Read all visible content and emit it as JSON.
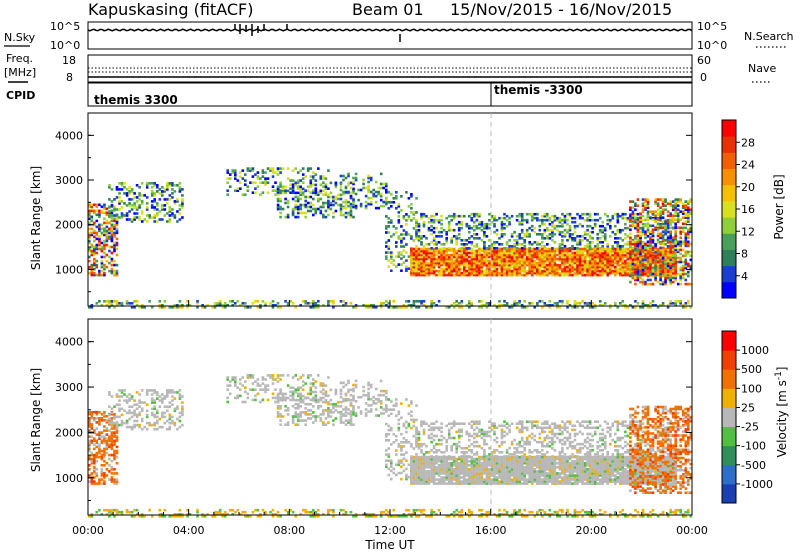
{
  "header": {
    "station": "Kapuskasing (fitACF)",
    "beam": "Beam 01",
    "date_range": "15/Nov/2015 - 16/Nov/2015"
  },
  "strip_panels": {
    "nsky": {
      "left_label": "N.Sky",
      "left_ticks": [
        "10^5",
        "10^0"
      ],
      "right_ticks": [
        "10^5",
        "10^0"
      ],
      "right_label": "N.Search"
    },
    "freq": {
      "left_label_line1": "Freq.",
      "left_label_line2": "[MHz]",
      "left_ticks": [
        "18",
        "8"
      ],
      "right_ticks": [
        "60",
        "0"
      ],
      "right_label": "Nave"
    },
    "cpid": {
      "label": "CPID",
      "segments": [
        "themis 3300",
        "themis -3300"
      ]
    }
  },
  "chart_data": [
    {
      "type": "heatmap",
      "name": "power",
      "ylabel": "Slant Range [km]",
      "ylim": [
        180,
        4500
      ],
      "yticks": [
        "4000",
        "3000",
        "2000",
        "1000"
      ],
      "xlim": [
        "00:00",
        "24:00"
      ],
      "colorbar": {
        "label": "Power [dB]",
        "ticks": [
          "28",
          "24",
          "20",
          "16",
          "12",
          "8",
          "4"
        ],
        "colors": [
          "#0000ff",
          "#1a3fd0",
          "#2f7f5a",
          "#4aa05a",
          "#8fcf3a",
          "#d8e020",
          "#f5c000",
          "#f59000",
          "#f06000",
          "#e83000",
          "#ff0000"
        ]
      },
      "dashed_marker_time": "16:00"
    },
    {
      "type": "heatmap",
      "name": "velocity",
      "ylabel": "Slant Range [km]",
      "ylim": [
        180,
        4500
      ],
      "yticks": [
        "4000",
        "3000",
        "2000",
        "1000"
      ],
      "xlim": [
        "00:00",
        "24:00"
      ],
      "colorbar": {
        "label": "Velocity [m s^-1]",
        "ticks": [
          "1000",
          "500",
          "100",
          "25",
          "-25",
          "-100",
          "-500",
          "-1000"
        ],
        "colors": [
          "#1a3fb0",
          "#2c6ec8",
          "#2f8f5a",
          "#50c040",
          "#b8b8b8",
          "#f0b000",
          "#f07000",
          "#f04000",
          "#ff0000"
        ]
      },
      "dashed_marker_time": "16:00"
    }
  ],
  "xaxis": {
    "label": "Time UT",
    "ticks": [
      "00:00",
      "04:00",
      "08:00",
      "12:00",
      "16:00",
      "20:00",
      "00:00"
    ]
  }
}
